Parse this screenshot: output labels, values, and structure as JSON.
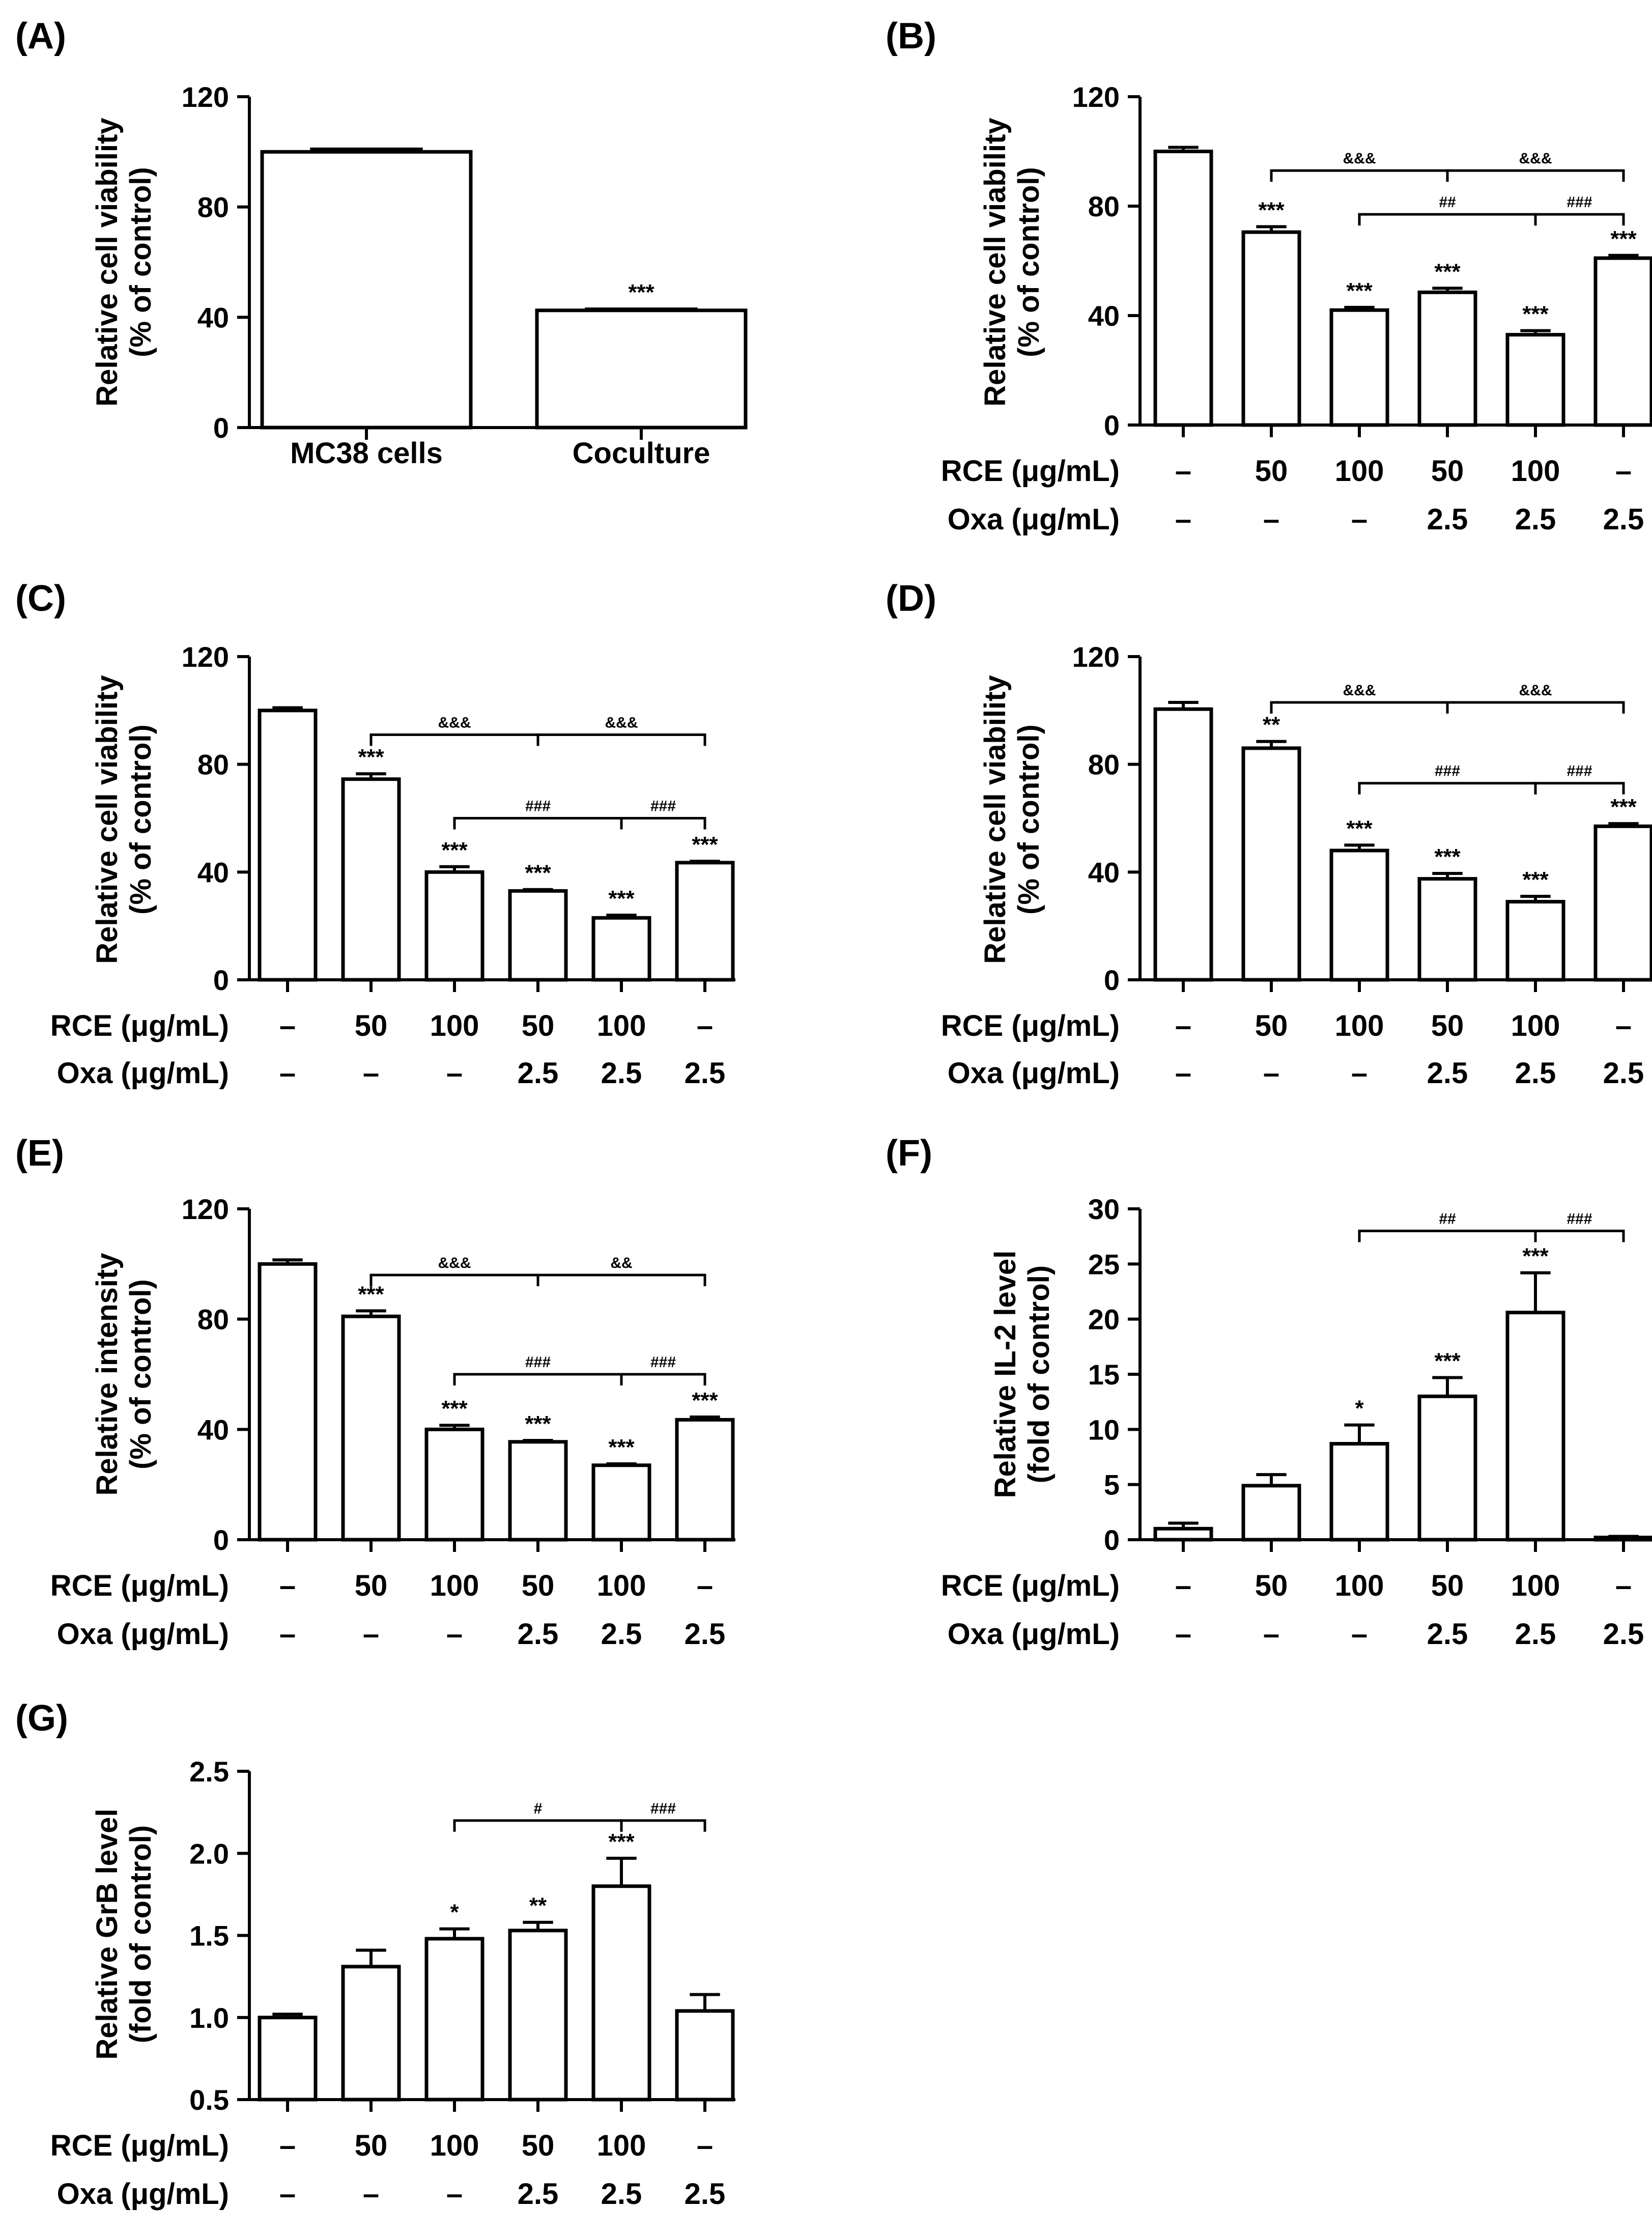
{
  "dash": "–",
  "row_labels": {
    "rce": "RCE (μg/mL)",
    "oxa": "Oxa (μg/mL)"
  },
  "chart_data": [
    {
      "panel": "(A)",
      "type": "bar",
      "ylabel": [
        "Relative cell viability",
        "(% of control)"
      ],
      "ylim": [
        0,
        120
      ],
      "yticks": [
        0,
        40,
        80,
        120
      ],
      "categories": [
        "MC38 cells",
        "Coculture"
      ],
      "values": [
        100,
        42.5
      ],
      "errors": [
        1,
        0.5
      ],
      "stars": [
        "",
        "***"
      ],
      "brackets": []
    },
    {
      "panel": "(B)",
      "type": "bar",
      "ylabel": [
        "Relative cell viability",
        "(% of control)"
      ],
      "ylim": [
        0,
        120
      ],
      "yticks": [
        0,
        40,
        80,
        120
      ],
      "rce": [
        "–",
        "50",
        "100",
        "50",
        "100",
        "–"
      ],
      "oxa": [
        "–",
        "–",
        "–",
        "2.5",
        "2.5",
        "2.5"
      ],
      "values": [
        100,
        70.5,
        42,
        48.5,
        33,
        61
      ],
      "errors": [
        1.5,
        2,
        1,
        1.5,
        1.5,
        1
      ],
      "stars": [
        "",
        "***",
        "***",
        "***",
        "***",
        "***"
      ],
      "brackets": [
        {
          "from": 1,
          "to": 3,
          "y": 93,
          "label": "&&&"
        },
        {
          "from": 3,
          "to": 5,
          "y": 93,
          "label": "&&&"
        },
        {
          "from": 2,
          "to": 4,
          "y": 77,
          "label": "##"
        },
        {
          "from": 4,
          "to": 5,
          "y": 77,
          "label": "###"
        }
      ]
    },
    {
      "panel": "(C)",
      "type": "bar",
      "ylabel": [
        "Relative cell viability",
        "(% of control)"
      ],
      "ylim": [
        0,
        120
      ],
      "yticks": [
        0,
        40,
        80,
        120
      ],
      "rce": [
        "–",
        "50",
        "100",
        "50",
        "100",
        "–"
      ],
      "oxa": [
        "–",
        "–",
        "–",
        "2.5",
        "2.5",
        "2.5"
      ],
      "values": [
        100,
        74.5,
        40,
        33,
        23,
        43.5
      ],
      "errors": [
        1,
        2,
        2,
        0.5,
        1,
        0.5
      ],
      "stars": [
        "",
        "***",
        "***",
        "***",
        "***",
        "***"
      ],
      "brackets": [
        {
          "from": 1,
          "to": 3,
          "y": 91,
          "label": "&&&"
        },
        {
          "from": 3,
          "to": 5,
          "y": 91,
          "label": "&&&"
        },
        {
          "from": 2,
          "to": 4,
          "y": 60,
          "label": "###"
        },
        {
          "from": 4,
          "to": 5,
          "y": 60,
          "label": "###"
        }
      ]
    },
    {
      "panel": "(D)",
      "type": "bar",
      "ylabel": [
        "Relative cell viability",
        "(% of control)"
      ],
      "ylim": [
        0,
        120
      ],
      "yticks": [
        0,
        40,
        80,
        120
      ],
      "rce": [
        "–",
        "50",
        "100",
        "50",
        "100",
        "–"
      ],
      "oxa": [
        "–",
        "–",
        "–",
        "2.5",
        "2.5",
        "2.5"
      ],
      "values": [
        100.5,
        86,
        48,
        37.5,
        29,
        57
      ],
      "errors": [
        2.5,
        2.5,
        2,
        2,
        2,
        1
      ],
      "stars": [
        "",
        "**",
        "***",
        "***",
        "***",
        "***"
      ],
      "brackets": [
        {
          "from": 1,
          "to": 3,
          "y": 103,
          "label": "&&&"
        },
        {
          "from": 3,
          "to": 5,
          "y": 103,
          "label": "&&&"
        },
        {
          "from": 2,
          "to": 4,
          "y": 73,
          "label": "###"
        },
        {
          "from": 4,
          "to": 5,
          "y": 73,
          "label": "###"
        }
      ]
    },
    {
      "panel": "(E)",
      "type": "bar",
      "ylabel": [
        "Relative intensity",
        "(% of control)"
      ],
      "ylim": [
        0,
        120
      ],
      "yticks": [
        0,
        40,
        80,
        120
      ],
      "rce": [
        "–",
        "50",
        "100",
        "50",
        "100",
        "–"
      ],
      "oxa": [
        "–",
        "–",
        "–",
        "2.5",
        "2.5",
        "2.5"
      ],
      "values": [
        100,
        81,
        40,
        35.5,
        27,
        43.5
      ],
      "errors": [
        1.5,
        2,
        1.5,
        0.5,
        0.5,
        1
      ],
      "stars": [
        "",
        "***",
        "***",
        "***",
        "***",
        "***"
      ],
      "brackets": [
        {
          "from": 1,
          "to": 3,
          "y": 96,
          "label": "&&&"
        },
        {
          "from": 3,
          "to": 5,
          "y": 96,
          "label": "&&"
        },
        {
          "from": 2,
          "to": 4,
          "y": 60,
          "label": "###"
        },
        {
          "from": 4,
          "to": 5,
          "y": 60,
          "label": "###"
        }
      ]
    },
    {
      "panel": "(F)",
      "type": "bar",
      "ylabel": [
        "Relative IL-2 level",
        "(fold of control)"
      ],
      "ylim": [
        0,
        30
      ],
      "yticks": [
        0,
        5,
        10,
        15,
        20,
        25,
        30
      ],
      "rce": [
        "–",
        "50",
        "100",
        "50",
        "100",
        "–"
      ],
      "oxa": [
        "–",
        "–",
        "–",
        "2.5",
        "2.5",
        "2.5"
      ],
      "values": [
        1,
        4.9,
        8.7,
        13,
        20.6,
        0.2
      ],
      "errors": [
        0.5,
        1,
        1.7,
        1.7,
        3.6,
        0.1
      ],
      "stars": [
        "",
        "",
        "*",
        "***",
        "***",
        ""
      ],
      "brackets": [
        {
          "from": 2,
          "to": 4,
          "y": 28,
          "label": "##"
        },
        {
          "from": 4,
          "to": 5,
          "y": 28,
          "label": "###"
        }
      ]
    },
    {
      "panel": "(G)",
      "type": "bar",
      "ylabel": [
        "Relative GrB level",
        "(fold of control)"
      ],
      "ylim": [
        0.5,
        2.5
      ],
      "yticks": [
        0.5,
        1.0,
        1.5,
        2.0,
        2.5
      ],
      "tick_decimals": 1,
      "rce": [
        "–",
        "50",
        "100",
        "50",
        "100",
        "–"
      ],
      "oxa": [
        "–",
        "–",
        "–",
        "2.5",
        "2.5",
        "2.5"
      ],
      "values": [
        1.0,
        1.31,
        1.48,
        1.53,
        1.8,
        1.04
      ],
      "errors": [
        0.02,
        0.1,
        0.06,
        0.05,
        0.17,
        0.1
      ],
      "stars": [
        "",
        "",
        "*",
        "**",
        "***",
        ""
      ],
      "brackets": [
        {
          "from": 2,
          "to": 4,
          "y": 2.2,
          "label": "#"
        },
        {
          "from": 4,
          "to": 5,
          "y": 2.2,
          "label": "###"
        }
      ]
    }
  ]
}
